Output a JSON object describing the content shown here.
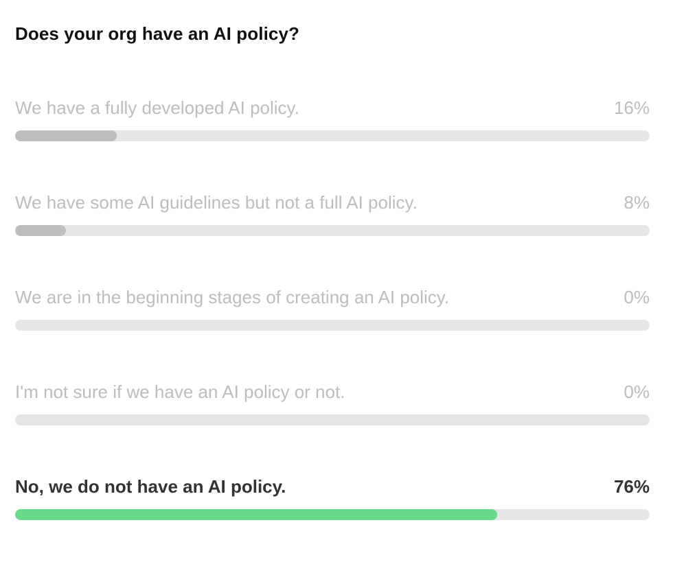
{
  "poll": {
    "question": "Does your org have an AI policy?",
    "colors": {
      "track": "#e6e6e6",
      "fill_default": "#bdbdbd",
      "fill_selected": "#66d98b",
      "text_muted": "#bdbdbd",
      "text_selected": "#333333"
    },
    "options": [
      {
        "label": "We have a fully developed AI policy.",
        "percent_text": "16%",
        "percent": 16,
        "selected": false
      },
      {
        "label": "We have some AI guidelines but not a full AI policy.",
        "percent_text": "8%",
        "percent": 8,
        "selected": false
      },
      {
        "label": "We are in the beginning stages of creating an AI policy.",
        "percent_text": "0%",
        "percent": 0,
        "selected": false
      },
      {
        "label": "I'm not sure if we have an AI policy or not.",
        "percent_text": "0%",
        "percent": 0,
        "selected": false
      },
      {
        "label": "No, we do not have an AI policy.",
        "percent_text": "76%",
        "percent": 76,
        "selected": true
      }
    ]
  }
}
